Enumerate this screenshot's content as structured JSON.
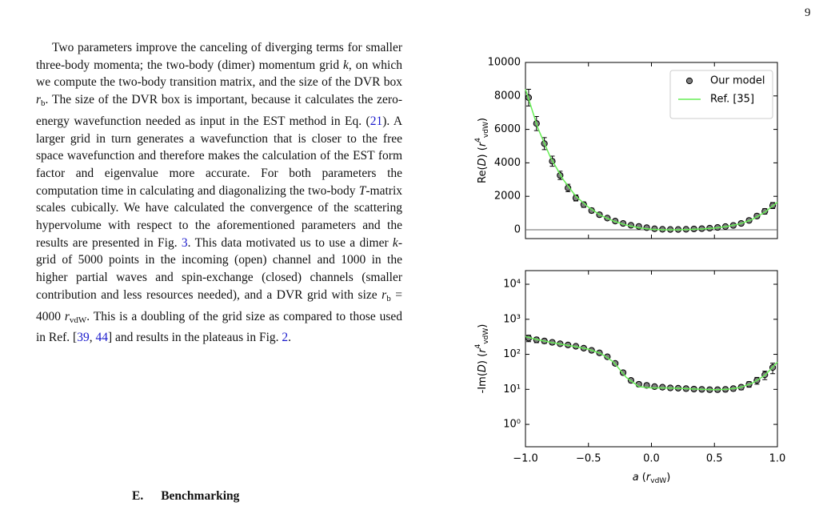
{
  "page_number": "9",
  "paragraph": [
    "Two parameters improve the canceling of diverging terms for smaller three-body momenta; the two-body (dimer) momentum grid ",
    "k",
    ", on which we compute the two-body transition matrix, and the size of the DVR box ",
    "r",
    "b",
    ". The size of the DVR box is important, because it calculates the zero-energy wavefunction needed as input in the EST method in Eq. (",
    "21",
    "). A larger grid in turn generates a wavefunction that is closer to the free space wavefunction and therefore makes the calculation of the EST form factor and eigenvalue more accurate. For both parameters the computation time in calculating and diagonalizing the two-body ",
    "T",
    "-matrix scales cubically. We have calculated the convergence of the scattering hypervolume with respect to the aforementioned parameters and the results are presented in Fig. ",
    "3",
    ". This data motivated us to use a dimer ",
    "k",
    "-grid of 5000 points in the incoming (open) channel and 1000 in the higher partial waves and spin-exchange (closed) channels (smaller contribution and less resources needed), and a DVR grid with size ",
    "r",
    "b",
    " = 4000 ",
    "r",
    "vdW",
    ". This is a doubling of the grid size as compared to those used in Ref. [",
    "39",
    ", ",
    "44",
    "] and results in the plateaus in Fig. ",
    "2",
    "."
  ],
  "section": {
    "number": "E.",
    "title": "Benchmarking"
  },
  "chart_data": [
    {
      "type": "errorbar",
      "ylabel": [
        "Re(",
        "D",
        ") (",
        "r",
        "4",
        "vdW",
        ")"
      ],
      "xlim": [
        -1,
        1
      ],
      "xticks": [
        -1,
        -0.5,
        0,
        0.5,
        1
      ],
      "xtick_labels": false,
      "ylim": [
        -526,
        10000
      ],
      "yticks": [
        0,
        2000,
        4000,
        6000,
        8000,
        10000
      ],
      "axhline": 0,
      "legend": "upper right",
      "series": [
        {
          "name": "Our model",
          "kind": "errorbar",
          "color": "#808080",
          "x": [
            -0.975,
            -0.9125,
            -0.85,
            -0.7875,
            -0.725,
            -0.6625,
            -0.6,
            -0.5375,
            -0.475,
            -0.4125,
            -0.35,
            -0.2875,
            -0.225,
            -0.1625,
            -0.1,
            -0.0375,
            0.025,
            0.0875,
            0.15,
            0.2125,
            0.275,
            0.3375,
            0.4,
            0.4625,
            0.525,
            0.5875,
            0.65,
            0.7125,
            0.775,
            0.8375,
            0.9,
            0.9625
          ],
          "values": [
            7900,
            6350,
            5150,
            4100,
            3250,
            2500,
            1900,
            1500,
            1150,
            900,
            700,
            520,
            380,
            270,
            200,
            130,
            60,
            30,
            20,
            20,
            30,
            50,
            70,
            100,
            140,
            190,
            260,
            380,
            560,
            820,
            1100,
            1450
          ],
          "errors": [
            500,
            420,
            360,
            300,
            250,
            220,
            180,
            160,
            140,
            120,
            110,
            100,
            100,
            90,
            90,
            80,
            80,
            80,
            80,
            80,
            80,
            80,
            80,
            80,
            90,
            90,
            100,
            110,
            120,
            140,
            160,
            180
          ]
        },
        {
          "name": "Ref. [35]",
          "kind": "line",
          "color": "#66ee55",
          "x": [
            -1,
            -0.9,
            -0.8,
            -0.7,
            -0.6,
            -0.5,
            -0.4,
            -0.3,
            -0.2,
            -0.1,
            0,
            0.1,
            0.2,
            0.3,
            0.4,
            0.5,
            0.6,
            0.7,
            0.8,
            0.9,
            1
          ],
          "values": [
            8400,
            6050,
            4300,
            3000,
            2000,
            1350,
            850,
            520,
            280,
            120,
            30,
            0,
            0,
            20,
            50,
            100,
            200,
            350,
            620,
            1050,
            1650
          ]
        }
      ]
    },
    {
      "type": "errorbar",
      "ylabel": [
        "-Im(",
        "D",
        ") (",
        "r",
        "4",
        "vdW",
        ")"
      ],
      "xlabel": [
        "a",
        " (",
        "r",
        "vdW",
        ")"
      ],
      "xlim": [
        -1,
        1
      ],
      "xticks": [
        {
          "value": -1,
          "label": "−1.0"
        },
        {
          "value": -0.5,
          "label": "−0.5"
        },
        {
          "value": 0,
          "label": "0.0"
        },
        {
          "value": 0.5,
          "label": "0.5"
        },
        {
          "value": 1,
          "label": "1.0"
        }
      ],
      "log_y": true,
      "ylim": [
        0.23,
        24500
      ],
      "yticks": [
        {
          "value": 1,
          "label": "10⁰"
        },
        {
          "value": 10,
          "label": "10¹"
        },
        {
          "value": 100,
          "label": "10²"
        },
        {
          "value": 1000,
          "label": "10³"
        },
        {
          "value": 10000,
          "label": "10⁴"
        }
      ],
      "series": [
        {
          "kind": "errorbar",
          "color": "#808080",
          "x": [
            -0.975,
            -0.9125,
            -0.85,
            -0.7875,
            -0.725,
            -0.6625,
            -0.6,
            -0.5375,
            -0.475,
            -0.4125,
            -0.35,
            -0.2875,
            -0.225,
            -0.1625,
            -0.1,
            -0.0375,
            0.025,
            0.0875,
            0.15,
            0.2125,
            0.275,
            0.3375,
            0.4,
            0.4625,
            0.525,
            0.5875,
            0.65,
            0.7125,
            0.775,
            0.8375,
            0.9,
            0.9625
          ],
          "values": [
            290,
            260,
            240,
            220,
            200,
            185,
            170,
            150,
            130,
            110,
            85,
            55,
            30,
            18,
            14,
            13,
            12,
            11.5,
            11,
            10.8,
            10.5,
            10.2,
            10,
            9.8,
            9.8,
            10,
            10.5,
            11.5,
            14,
            18,
            26,
            42
          ],
          "errors": [
            60,
            45,
            35,
            30,
            25,
            22,
            20,
            18,
            15,
            13,
            10,
            7,
            4,
            2.5,
            2,
            1.8,
            1.6,
            1.5,
            1.4,
            1.4,
            1.4,
            1.3,
            1.3,
            1.3,
            1.3,
            1.4,
            1.5,
            1.8,
            2.5,
            4,
            7,
            14
          ]
        },
        {
          "kind": "line",
          "color": "#66ee55",
          "x": [
            -1,
            -0.9,
            -0.8,
            -0.7,
            -0.6,
            -0.5,
            -0.4,
            -0.3,
            -0.2,
            -0.1,
            0,
            0.1,
            0.2,
            0.3,
            0.4,
            0.5,
            0.6,
            0.7,
            0.8,
            0.9,
            1
          ],
          "values": [
            320,
            260,
            220,
            190,
            165,
            140,
            105,
            60,
            22,
            12,
            11,
            11,
            10.8,
            10.4,
            10,
            9.8,
            10,
            11.2,
            15,
            25,
            60
          ]
        }
      ]
    }
  ]
}
